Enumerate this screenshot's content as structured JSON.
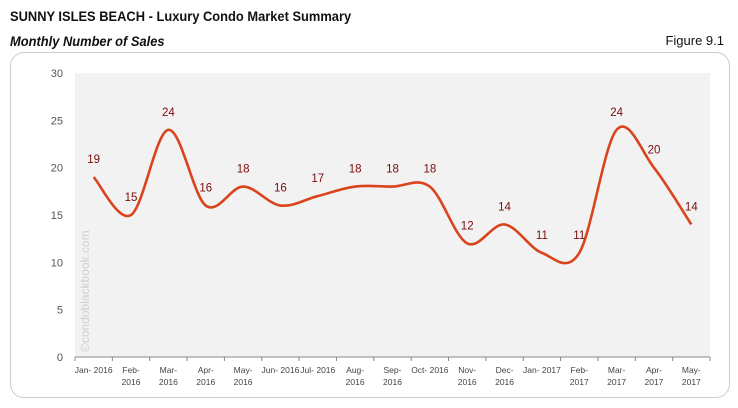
{
  "header": {
    "title": "SUNNY ISLES BEACH - Luxury Condo Market Summary",
    "subtitle": "Monthly Number of Sales",
    "figure": "Figure 9.1"
  },
  "watermark": "©condoblackbook.com",
  "chart_data": {
    "type": "line",
    "title": "",
    "xlabel": "",
    "ylabel": "",
    "ylim": [
      0,
      30
    ],
    "yticks": [
      0,
      5,
      10,
      15,
      20,
      25,
      30
    ],
    "categories": [
      [
        "Jan- 2016"
      ],
      [
        "Feb-",
        "2016"
      ],
      [
        "Mar-",
        "2016"
      ],
      [
        "Apr-",
        "2016"
      ],
      [
        "May-",
        "2016"
      ],
      [
        "Jun- 2016"
      ],
      [
        "Jul- 2016"
      ],
      [
        "Aug-",
        "2016"
      ],
      [
        "Sep-",
        "2016"
      ],
      [
        "Oct- 2016"
      ],
      [
        "Nov-",
        "2016"
      ],
      [
        "Dec-",
        "2016"
      ],
      [
        "Jan- 2017"
      ],
      [
        "Feb-",
        "2017"
      ],
      [
        "Mar-",
        "2017"
      ],
      [
        "Apr-",
        "2017"
      ],
      [
        "May-",
        "2017"
      ]
    ],
    "values": [
      19,
      15,
      24,
      16,
      18,
      16,
      17,
      18,
      18,
      18,
      12,
      14,
      11,
      11,
      24,
      20,
      14
    ],
    "smooth": true,
    "grid": false,
    "data_labels": true,
    "colors": {
      "line": "#d9441c",
      "label": "#7a0c0c",
      "plot_bg": "#f2f2f2"
    }
  }
}
